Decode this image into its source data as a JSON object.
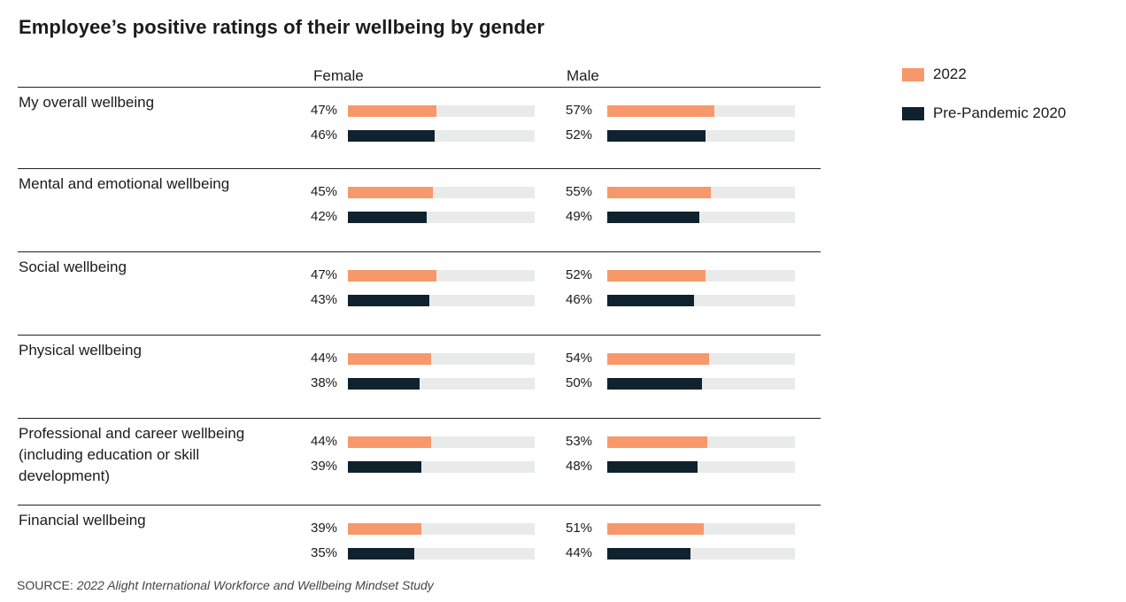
{
  "chart_data": {
    "type": "bar",
    "orientation": "horizontal",
    "title": "Employee’s positive ratings of their wellbeing by gender",
    "panels": [
      "Female",
      "Male"
    ],
    "series_names": [
      "2022",
      "Pre-Pandemic 2020"
    ],
    "categories": [
      "My overall wellbeing",
      "Mental and emotional wellbeing",
      "Social wellbeing",
      "Physical wellbeing",
      "Professional and career wellbeing (including education or skill development)",
      "Financial wellbeing"
    ],
    "series": [
      {
        "name": "Female 2022",
        "values": [
          47,
          45,
          47,
          44,
          44,
          39
        ]
      },
      {
        "name": "Female Pre-Pandemic 2020",
        "values": [
          46,
          42,
          43,
          38,
          39,
          35
        ]
      },
      {
        "name": "Male 2022",
        "values": [
          57,
          55,
          52,
          54,
          53,
          51
        ]
      },
      {
        "name": "Male Pre-Pandemic 2020",
        "values": [
          52,
          49,
          46,
          50,
          48,
          44
        ]
      }
    ],
    "xlim": [
      0,
      100
    ],
    "value_suffix": "%",
    "colors": {
      "2022": "#f7986a",
      "Pre-Pandemic 2020": "#0f222d",
      "track": "#e9ebeb"
    },
    "legend": [
      {
        "label": "2022",
        "color": "#f7986a"
      },
      {
        "label": "Pre-Pandemic 2020",
        "color": "#0f222d"
      }
    ]
  },
  "source": {
    "prefix": "SOURCE: ",
    "title": "2022 Alight International Workforce and Wellbeing Mindset Study"
  }
}
